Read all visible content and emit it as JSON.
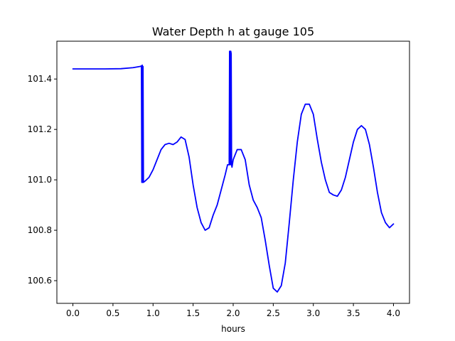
{
  "chart_data": {
    "type": "line",
    "title": "Water Depth h at gauge 105",
    "xlabel": "hours",
    "ylabel": "",
    "xlim": [
      -0.2,
      4.2
    ],
    "ylim": [
      100.51,
      101.55
    ],
    "xticks": [
      0.0,
      0.5,
      1.0,
      1.5,
      2.0,
      2.5,
      3.0,
      3.5,
      4.0
    ],
    "xtick_labels": [
      "0.0",
      "0.5",
      "1.0",
      "1.5",
      "2.0",
      "2.5",
      "3.0",
      "3.5",
      "4.0"
    ],
    "yticks": [
      100.6,
      100.8,
      101.0,
      101.2,
      101.4
    ],
    "ytick_labels": [
      "100.6",
      "100.8",
      "101.0",
      "101.2",
      "101.4"
    ],
    "grid": false,
    "series": [
      {
        "color": "#0000ff",
        "x": [
          0.0,
          0.2,
          0.4,
          0.6,
          0.75,
          0.84,
          0.855,
          0.86,
          0.865,
          0.87,
          0.875,
          0.88,
          0.9,
          0.95,
          1.0,
          1.05,
          1.1,
          1.15,
          1.2,
          1.25,
          1.3,
          1.35,
          1.4,
          1.45,
          1.5,
          1.55,
          1.6,
          1.65,
          1.7,
          1.75,
          1.8,
          1.85,
          1.9,
          1.93,
          1.95,
          1.955,
          1.96,
          1.962,
          1.965,
          1.97,
          1.975,
          1.98,
          1.985,
          2.0,
          2.05,
          2.1,
          2.15,
          2.2,
          2.25,
          2.3,
          2.35,
          2.4,
          2.45,
          2.5,
          2.55,
          2.6,
          2.65,
          2.7,
          2.75,
          2.8,
          2.85,
          2.9,
          2.95,
          3.0,
          3.05,
          3.1,
          3.15,
          3.2,
          3.25,
          3.3,
          3.35,
          3.4,
          3.45,
          3.5,
          3.55,
          3.6,
          3.65,
          3.7,
          3.75,
          3.8,
          3.85,
          3.9,
          3.95,
          4.0
        ],
        "y": [
          101.44,
          101.44,
          101.44,
          101.441,
          101.445,
          101.45,
          101.452,
          100.99,
          101.455,
          100.99,
          101.45,
          100.99,
          100.995,
          101.01,
          101.04,
          101.08,
          101.12,
          101.14,
          101.145,
          101.14,
          101.15,
          101.17,
          101.16,
          101.09,
          100.98,
          100.89,
          100.83,
          100.8,
          100.81,
          100.86,
          100.9,
          100.96,
          101.02,
          101.06,
          101.06,
          101.51,
          101.06,
          101.51,
          101.06,
          101.51,
          101.5,
          101.06,
          101.05,
          101.08,
          101.12,
          101.12,
          101.08,
          100.98,
          100.92,
          100.89,
          100.85,
          100.76,
          100.66,
          100.57,
          100.555,
          100.58,
          100.67,
          100.83,
          101.0,
          101.15,
          101.26,
          101.3,
          101.3,
          101.26,
          101.16,
          101.07,
          101.0,
          100.95,
          100.94,
          100.935,
          100.96,
          101.01,
          101.08,
          101.15,
          101.2,
          101.215,
          101.2,
          101.14,
          101.05,
          100.95,
          100.87,
          100.83,
          100.81,
          100.825
        ]
      }
    ]
  }
}
